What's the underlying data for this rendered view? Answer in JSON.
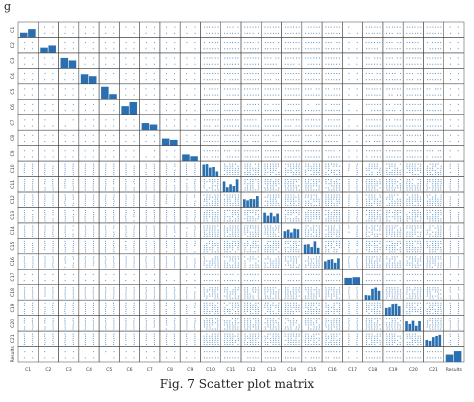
{
  "figure": {
    "fragment_text": "g",
    "caption": "Fig. 7 Scatter plot matrix"
  },
  "chart_data": {
    "type": "scatter",
    "subtype": "scatter-matrix",
    "variables": [
      "C1",
      "C2",
      "C3",
      "C4",
      "C5",
      "C6",
      "C7",
      "C8",
      "C9",
      "C10",
      "C11",
      "C12",
      "C13",
      "C14",
      "C15",
      "C16",
      "C17",
      "C18",
      "C19",
      "C20",
      "C21",
      "Results"
    ],
    "diagonal": "histogram",
    "colors": {
      "points": "#2a6fb0",
      "bars": "#2a6fb0",
      "axes": "#333333"
    },
    "grid": false,
    "legend": "none"
  }
}
